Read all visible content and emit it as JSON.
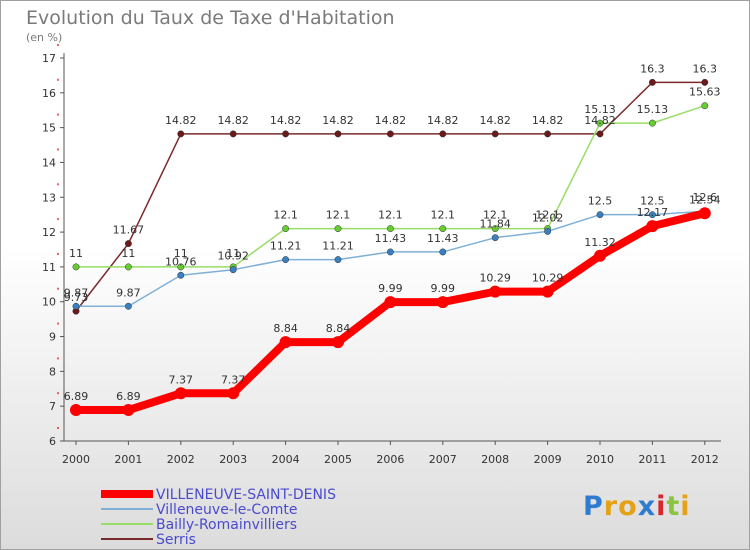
{
  "title": "Evolution du Taux de Taxe d'Habitation",
  "subtitle": "(en %)",
  "logo": {
    "letters": [
      "P",
      "r",
      "o",
      "x",
      "i",
      "t",
      "i"
    ],
    "colors": [
      "#2f7bd1",
      "#e5a218",
      "#e5a218",
      "#2f7bd1",
      "#d8262b",
      "#8bc53f",
      "#e5a218"
    ]
  },
  "chart_data": {
    "type": "line",
    "x": [
      2000,
      2001,
      2002,
      2003,
      2004,
      2005,
      2006,
      2007,
      2008,
      2009,
      2010,
      2011,
      2012
    ],
    "ylim": [
      6,
      17
    ],
    "yticks": [
      6,
      7,
      8,
      9,
      10,
      11,
      12,
      13,
      14,
      15,
      16,
      17
    ],
    "grid": false,
    "legend_position": "bottom-left",
    "series": [
      {
        "name": "VILLENEUVE-SAINT-DENIS",
        "color": "#ff0000",
        "marker": "#ff0000",
        "width": 8,
        "values": [
          6.89,
          6.89,
          7.37,
          7.37,
          8.84,
          8.84,
          9.99,
          9.99,
          10.29,
          10.29,
          11.32,
          12.17,
          12.54
        ],
        "labels": [
          "6.89",
          "6.89",
          "7.37",
          "7.37",
          "8.84",
          "8.84",
          "9.99",
          "9.99",
          "10.29",
          "10.29",
          "11.32",
          "12.17",
          "12.54"
        ]
      },
      {
        "name": "Villeneuve-le-Comte",
        "color": "#7fb0d8",
        "marker": "#3a80c0",
        "width": 1.5,
        "values": [
          9.87,
          9.87,
          10.76,
          10.92,
          11.21,
          11.21,
          11.43,
          11.43,
          11.84,
          12.02,
          12.5,
          12.5,
          12.6
        ],
        "labels": [
          "9.87",
          "9.87",
          "10.76",
          "10.92",
          "11.21",
          "11.21",
          "11.43",
          "11.43",
          "11.84",
          "12.02",
          "12.5",
          "12.5",
          "12.6"
        ]
      },
      {
        "name": "Bailly-Romainvilliers",
        "color": "#99dd66",
        "marker": "#66cc33",
        "width": 1.5,
        "values": [
          11,
          11,
          11,
          11,
          12.1,
          12.1,
          12.1,
          12.1,
          12.1,
          12.1,
          15.13,
          15.13,
          15.63
        ],
        "labels": [
          "11",
          "11",
          "11",
          "11",
          "12.1",
          "12.1",
          "12.1",
          "12.1",
          "12.1",
          "12.1",
          "15.13",
          "15.13",
          "15.63"
        ]
      },
      {
        "name": "Serris",
        "color": "#7a2a2a",
        "marker": "#6b1a1a",
        "width": 1.5,
        "values": [
          9.73,
          11.67,
          14.82,
          14.82,
          14.82,
          14.82,
          14.82,
          14.82,
          14.82,
          14.82,
          14.82,
          16.3,
          16.3
        ],
        "labels": [
          "9.73",
          "11.67",
          "14.82",
          "14.82",
          "14.82",
          "14.82",
          "14.82",
          "14.82",
          "14.82",
          "14.82",
          "14.82",
          "16.3",
          "16.3"
        ]
      }
    ]
  }
}
